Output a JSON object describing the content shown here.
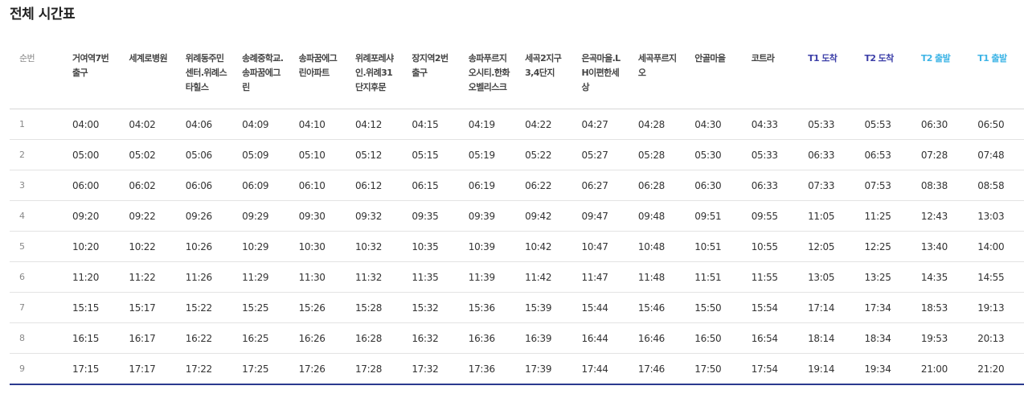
{
  "page": {
    "title": "전체 시간표"
  },
  "table": {
    "header_num": "순번",
    "headers": [
      {
        "label": "거여역7번 출구",
        "color": "#444444"
      },
      {
        "label": "세계로병원",
        "color": "#444444"
      },
      {
        "label": "위례동주민센터.위례스타힐스",
        "color": "#444444"
      },
      {
        "label": "송례중학교.송파꿈에그린",
        "color": "#444444"
      },
      {
        "label": "송파꿈에그린아파트",
        "color": "#444444"
      },
      {
        "label": "위례포레샤인.위례31단지후문",
        "color": "#444444"
      },
      {
        "label": "장지역2번 출구",
        "color": "#444444"
      },
      {
        "label": "송파푸르지오시티.한화오벨리스크",
        "color": "#444444"
      },
      {
        "label": "세곡2지구 3,4단지",
        "color": "#444444"
      },
      {
        "label": "은곡마을.LH이편한세상",
        "color": "#444444"
      },
      {
        "label": "세곡푸르지오",
        "color": "#444444"
      },
      {
        "label": "안골마을",
        "color": "#444444"
      },
      {
        "label": "코트라",
        "color": "#444444"
      },
      {
        "label": "T1 도착",
        "color": "#3c3fa8"
      },
      {
        "label": "T2 도착",
        "color": "#3c3fa8"
      },
      {
        "label": "T2 출발",
        "color": "#3db4e6"
      },
      {
        "label": "T1 출발",
        "color": "#3db4e6"
      }
    ],
    "rows": [
      {
        "num": "1",
        "times": [
          "04:00",
          "04:02",
          "04:06",
          "04:09",
          "04:10",
          "04:12",
          "04:15",
          "04:19",
          "04:22",
          "04:27",
          "04:28",
          "04:30",
          "04:33",
          "05:33",
          "05:53",
          "06:30",
          "06:50"
        ]
      },
      {
        "num": "2",
        "times": [
          "05:00",
          "05:02",
          "05:06",
          "05:09",
          "05:10",
          "05:12",
          "05:15",
          "05:19",
          "05:22",
          "05:27",
          "05:28",
          "05:30",
          "05:33",
          "06:33",
          "06:53",
          "07:28",
          "07:48"
        ]
      },
      {
        "num": "3",
        "times": [
          "06:00",
          "06:02",
          "06:06",
          "06:09",
          "06:10",
          "06:12",
          "06:15",
          "06:19",
          "06:22",
          "06:27",
          "06:28",
          "06:30",
          "06:33",
          "07:33",
          "07:53",
          "08:38",
          "08:58"
        ]
      },
      {
        "num": "4",
        "times": [
          "09:20",
          "09:22",
          "09:26",
          "09:29",
          "09:30",
          "09:32",
          "09:35",
          "09:39",
          "09:42",
          "09:47",
          "09:48",
          "09:51",
          "09:55",
          "11:05",
          "11:25",
          "12:43",
          "13:03"
        ]
      },
      {
        "num": "5",
        "times": [
          "10:20",
          "10:22",
          "10:26",
          "10:29",
          "10:30",
          "10:32",
          "10:35",
          "10:39",
          "10:42",
          "10:47",
          "10:48",
          "10:51",
          "10:55",
          "12:05",
          "12:25",
          "13:40",
          "14:00"
        ]
      },
      {
        "num": "6",
        "times": [
          "11:20",
          "11:22",
          "11:26",
          "11:29",
          "11:30",
          "11:32",
          "11:35",
          "11:39",
          "11:42",
          "11:47",
          "11:48",
          "11:51",
          "11:55",
          "13:05",
          "13:25",
          "14:35",
          "14:55"
        ]
      },
      {
        "num": "7",
        "times": [
          "15:15",
          "15:17",
          "15:22",
          "15:25",
          "15:26",
          "15:28",
          "15:32",
          "15:36",
          "15:39",
          "15:44",
          "15:46",
          "15:50",
          "15:54",
          "17:14",
          "17:34",
          "18:53",
          "19:13"
        ]
      },
      {
        "num": "8",
        "times": [
          "16:15",
          "16:17",
          "16:22",
          "16:25",
          "16:26",
          "16:28",
          "16:32",
          "16:36",
          "16:39",
          "16:44",
          "16:46",
          "16:50",
          "16:54",
          "18:14",
          "18:34",
          "19:53",
          "20:13"
        ]
      },
      {
        "num": "9",
        "times": [
          "17:15",
          "17:17",
          "17:22",
          "17:25",
          "17:26",
          "17:28",
          "17:32",
          "17:36",
          "17:39",
          "17:44",
          "17:46",
          "17:50",
          "17:54",
          "19:14",
          "19:34",
          "21:00",
          "21:20"
        ]
      }
    ]
  }
}
